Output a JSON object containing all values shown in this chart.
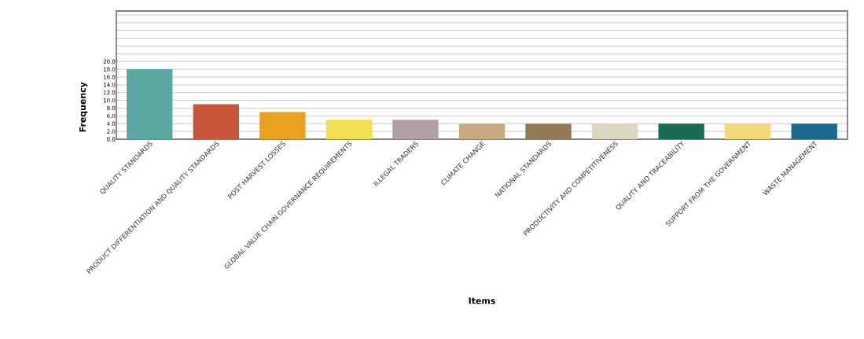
{
  "chart_data": {
    "type": "bar",
    "xlabel": "Items",
    "ylabel": "Frequency",
    "categories": [
      "QUALITY STANDARDS",
      "PRODUCT DIFFERENTIATION AND QUALITY STANDARDS",
      "POST HARVEST LOSSES",
      "GLOBAL VALUE CHAIN GOVERNANCE REQUIREMENTS",
      "ILLEGAL TRADERS",
      "CLIMATE CHANGE",
      "NATIONAL STANDARDS",
      "PRODUCTIVITY AND COMPETITIVENESS",
      "QUALITY AND TRACEABILITY",
      "SUPPORT FROM THE GOVERNMENT",
      "WASTE MANAGEMENT"
    ],
    "values": [
      18,
      9,
      7,
      5,
      5,
      4,
      4,
      4,
      4,
      4,
      4
    ],
    "colors": [
      "#5aa8a0",
      "#c8553a",
      "#e8a020",
      "#f0e050",
      "#b0a0a5",
      "#c8a880",
      "#8f7a55",
      "#ddd5c0",
      "#1a6a55",
      "#f5d878",
      "#1a6a90"
    ],
    "ylim": [
      0,
      33
    ],
    "yticks": [
      {
        "value": 0,
        "label": "0.0"
      },
      {
        "value": 2,
        "label": "2.0"
      },
      {
        "value": 4,
        "label": "4.0"
      },
      {
        "value": 6,
        "label": "6.0"
      },
      {
        "value": 8,
        "label": "8.0"
      },
      {
        "value": 10,
        "label": "10.0"
      },
      {
        "value": 12,
        "label": "12.0"
      },
      {
        "value": 14,
        "label": "14.0"
      },
      {
        "value": 16,
        "label": "16.0"
      },
      {
        "value": 18,
        "label": "18.0"
      },
      {
        "value": 20,
        "label": "20.0"
      },
      {
        "value": 22,
        "label": null
      },
      {
        "value": 24,
        "label": null
      },
      {
        "value": 26,
        "label": null
      },
      {
        "value": 28,
        "label": null
      },
      {
        "value": 30,
        "label": null
      },
      {
        "value": 32,
        "label": null
      }
    ],
    "grid": "y"
  }
}
